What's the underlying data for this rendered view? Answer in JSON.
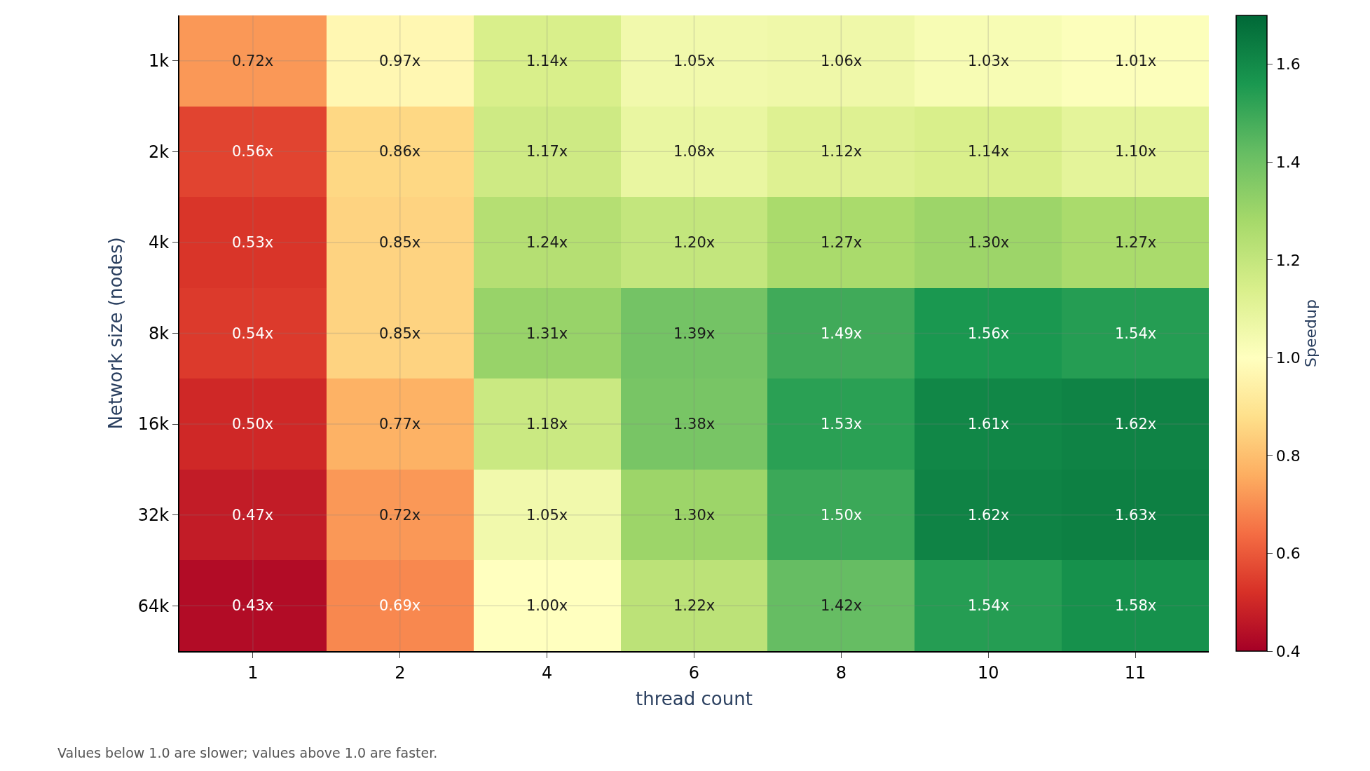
{
  "chart_data": {
    "type": "heatmap",
    "xlabel": "thread count",
    "ylabel": "Network size (nodes)",
    "clabel": "Speedup",
    "categories": [
      "1",
      "2",
      "4",
      "6",
      "8",
      "10",
      "11"
    ],
    "y_categories": [
      "1k",
      "2k",
      "4k",
      "8k",
      "16k",
      "32k",
      "64k"
    ],
    "cells": [
      [
        0.72,
        0.97,
        1.14,
        1.05,
        1.06,
        1.03,
        1.01
      ],
      [
        0.56,
        0.86,
        1.17,
        1.08,
        1.12,
        1.14,
        1.1
      ],
      [
        0.53,
        0.85,
        1.24,
        1.2,
        1.27,
        1.3,
        1.27
      ],
      [
        0.54,
        0.85,
        1.31,
        1.39,
        1.49,
        1.56,
        1.54
      ],
      [
        0.5,
        0.77,
        1.18,
        1.38,
        1.53,
        1.61,
        1.62
      ],
      [
        0.47,
        0.72,
        1.05,
        1.3,
        1.5,
        1.62,
        1.63
      ],
      [
        0.43,
        0.69,
        1.0,
        1.22,
        1.42,
        1.54,
        1.58
      ]
    ],
    "cell_labels": [
      [
        "0.72x",
        "0.97x",
        "1.14x",
        "1.05x",
        "1.06x",
        "1.03x",
        "1.01x"
      ],
      [
        "0.56x",
        "0.86x",
        "1.17x",
        "1.08x",
        "1.12x",
        "1.14x",
        "1.10x"
      ],
      [
        "0.53x",
        "0.85x",
        "1.24x",
        "1.20x",
        "1.27x",
        "1.30x",
        "1.27x"
      ],
      [
        "0.54x",
        "0.85x",
        "1.31x",
        "1.39x",
        "1.49x",
        "1.56x",
        "1.54x"
      ],
      [
        "0.50x",
        "0.77x",
        "1.18x",
        "1.38x",
        "1.53x",
        "1.61x",
        "1.62x"
      ],
      [
        "0.47x",
        "0.72x",
        "1.05x",
        "1.30x",
        "1.50x",
        "1.62x",
        "1.63x"
      ],
      [
        "0.43x",
        "0.69x",
        "1.00x",
        "1.22x",
        "1.42x",
        "1.54x",
        "1.58x"
      ]
    ],
    "clim": [
      0.4,
      1.7
    ],
    "cticks": [
      0.4,
      0.6,
      0.8,
      {
        "value": 1,
        "label": "1.0"
      },
      1.2,
      1.4,
      1.6
    ],
    "grid": true,
    "annotations": [
      "Values below 1.0 are slower; values above 1.0 are faster."
    ]
  }
}
